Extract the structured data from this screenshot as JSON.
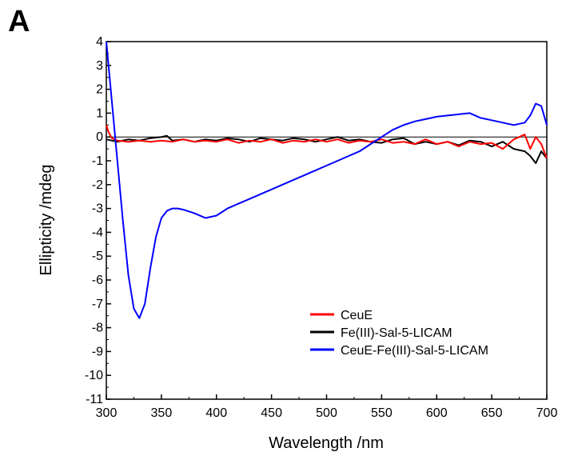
{
  "panel_label": "A",
  "chart_data": {
    "type": "line",
    "xlabel": "Wavelength /nm",
    "ylabel": "Ellipticity /mdeg",
    "xlim": [
      300,
      700
    ],
    "ylim": [
      -11,
      4
    ],
    "x_ticks": [
      300,
      350,
      400,
      450,
      500,
      550,
      600,
      650,
      700
    ],
    "y_ticks": [
      4,
      3,
      2,
      1,
      0,
      -1,
      -2,
      -3,
      -4,
      -5,
      -6,
      -7,
      -8,
      -9,
      -10,
      -11
    ],
    "zero_line": true,
    "legend_position": "bottom-right",
    "series": [
      {
        "name": "CeuE",
        "color": "#ff0000",
        "points": [
          [
            300,
            0.5
          ],
          [
            302,
            0.2
          ],
          [
            305,
            -0.05
          ],
          [
            310,
            -0.15
          ],
          [
            320,
            -0.2
          ],
          [
            330,
            -0.15
          ],
          [
            340,
            -0.2
          ],
          [
            350,
            -0.15
          ],
          [
            360,
            -0.2
          ],
          [
            370,
            -0.1
          ],
          [
            380,
            -0.2
          ],
          [
            390,
            -0.15
          ],
          [
            400,
            -0.2
          ],
          [
            410,
            -0.1
          ],
          [
            420,
            -0.25
          ],
          [
            430,
            -0.15
          ],
          [
            440,
            -0.2
          ],
          [
            450,
            -0.1
          ],
          [
            460,
            -0.25
          ],
          [
            470,
            -0.15
          ],
          [
            480,
            -0.2
          ],
          [
            490,
            -0.1
          ],
          [
            500,
            -0.2
          ],
          [
            510,
            -0.1
          ],
          [
            520,
            -0.25
          ],
          [
            530,
            -0.15
          ],
          [
            540,
            -0.2
          ],
          [
            550,
            -0.1
          ],
          [
            560,
            -0.25
          ],
          [
            570,
            -0.2
          ],
          [
            580,
            -0.3
          ],
          [
            590,
            -0.1
          ],
          [
            600,
            -0.3
          ],
          [
            610,
            -0.2
          ],
          [
            620,
            -0.4
          ],
          [
            630,
            -0.2
          ],
          [
            640,
            -0.3
          ],
          [
            650,
            -0.25
          ],
          [
            660,
            -0.5
          ],
          [
            670,
            -0.1
          ],
          [
            680,
            0.1
          ],
          [
            685,
            -0.5
          ],
          [
            690,
            0.0
          ],
          [
            695,
            -0.3
          ],
          [
            700,
            -0.9
          ]
        ]
      },
      {
        "name": "Fe(III)-Sal-5-LICAM",
        "color": "#000000",
        "points": [
          [
            300,
            -0.1
          ],
          [
            310,
            -0.2
          ],
          [
            320,
            -0.1
          ],
          [
            330,
            -0.15
          ],
          [
            340,
            -0.05
          ],
          [
            350,
            0.0
          ],
          [
            355,
            0.05
          ],
          [
            360,
            -0.15
          ],
          [
            370,
            -0.1
          ],
          [
            380,
            -0.2
          ],
          [
            390,
            -0.1
          ],
          [
            400,
            -0.15
          ],
          [
            410,
            -0.05
          ],
          [
            420,
            -0.1
          ],
          [
            430,
            -0.2
          ],
          [
            440,
            -0.05
          ],
          [
            450,
            -0.1
          ],
          [
            460,
            -0.15
          ],
          [
            470,
            -0.05
          ],
          [
            480,
            -0.1
          ],
          [
            490,
            -0.2
          ],
          [
            500,
            -0.1
          ],
          [
            510,
            0.0
          ],
          [
            520,
            -0.15
          ],
          [
            530,
            -0.1
          ],
          [
            540,
            -0.2
          ],
          [
            550,
            -0.25
          ],
          [
            560,
            -0.1
          ],
          [
            570,
            -0.05
          ],
          [
            580,
            -0.3
          ],
          [
            590,
            -0.2
          ],
          [
            600,
            -0.3
          ],
          [
            610,
            -0.2
          ],
          [
            620,
            -0.35
          ],
          [
            630,
            -0.15
          ],
          [
            640,
            -0.2
          ],
          [
            650,
            -0.4
          ],
          [
            660,
            -0.2
          ],
          [
            670,
            -0.5
          ],
          [
            680,
            -0.6
          ],
          [
            685,
            -0.8
          ],
          [
            690,
            -1.1
          ],
          [
            695,
            -0.6
          ],
          [
            700,
            -0.9
          ]
        ]
      },
      {
        "name": "CeuE-Fe(III)-Sal-5-LICAM",
        "color": "#0000ff",
        "points": [
          [
            300,
            4.0
          ],
          [
            305,
            1.5
          ],
          [
            310,
            -1.0
          ],
          [
            315,
            -3.5
          ],
          [
            320,
            -5.8
          ],
          [
            325,
            -7.2
          ],
          [
            330,
            -7.6
          ],
          [
            335,
            -7.0
          ],
          [
            340,
            -5.5
          ],
          [
            345,
            -4.2
          ],
          [
            350,
            -3.4
          ],
          [
            355,
            -3.1
          ],
          [
            360,
            -3.0
          ],
          [
            365,
            -3.0
          ],
          [
            370,
            -3.05
          ],
          [
            380,
            -3.2
          ],
          [
            390,
            -3.4
          ],
          [
            400,
            -3.3
          ],
          [
            410,
            -3.0
          ],
          [
            420,
            -2.8
          ],
          [
            430,
            -2.6
          ],
          [
            440,
            -2.4
          ],
          [
            450,
            -2.2
          ],
          [
            460,
            -2.0
          ],
          [
            470,
            -1.8
          ],
          [
            480,
            -1.6
          ],
          [
            490,
            -1.4
          ],
          [
            500,
            -1.2
          ],
          [
            510,
            -1.0
          ],
          [
            520,
            -0.8
          ],
          [
            530,
            -0.6
          ],
          [
            540,
            -0.3
          ],
          [
            550,
            0.0
          ],
          [
            560,
            0.3
          ],
          [
            570,
            0.5
          ],
          [
            580,
            0.65
          ],
          [
            590,
            0.75
          ],
          [
            600,
            0.85
          ],
          [
            610,
            0.9
          ],
          [
            620,
            0.95
          ],
          [
            630,
            1.0
          ],
          [
            640,
            0.8
          ],
          [
            650,
            0.7
          ],
          [
            660,
            0.6
          ],
          [
            670,
            0.5
          ],
          [
            680,
            0.6
          ],
          [
            685,
            0.9
          ],
          [
            690,
            1.4
          ],
          [
            695,
            1.3
          ],
          [
            700,
            0.5
          ]
        ]
      }
    ]
  }
}
